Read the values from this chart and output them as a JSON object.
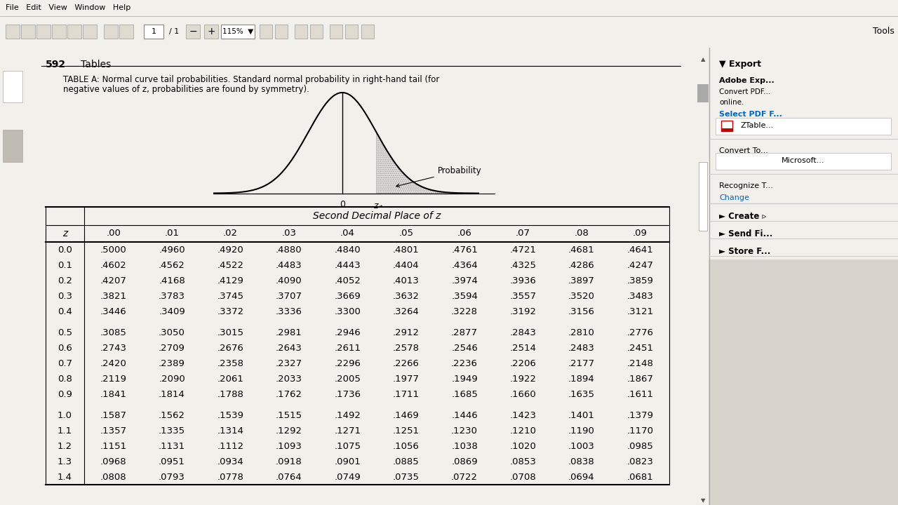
{
  "page_number": "592",
  "page_label": "Tables",
  "col_header_label": "Second Decimal Place of z",
  "z_label": "z",
  "col_headers": [
    ".00",
    ".01",
    ".02",
    ".03",
    ".04",
    ".05",
    ".06",
    ".07",
    ".08",
    ".09"
  ],
  "rows": [
    {
      "z": "0.0",
      "vals": [
        ".5000",
        ".4960",
        ".4920",
        ".4880",
        ".4840",
        ".4801",
        ".4761",
        ".4721",
        ".4681",
        ".4641"
      ]
    },
    {
      "z": "0.1",
      "vals": [
        ".4602",
        ".4562",
        ".4522",
        ".4483",
        ".4443",
        ".4404",
        ".4364",
        ".4325",
        ".4286",
        ".4247"
      ]
    },
    {
      "z": "0.2",
      "vals": [
        ".4207",
        ".4168",
        ".4129",
        ".4090",
        ".4052",
        ".4013",
        ".3974",
        ".3936",
        ".3897",
        ".3859"
      ]
    },
    {
      "z": "0.3",
      "vals": [
        ".3821",
        ".3783",
        ".3745",
        ".3707",
        ".3669",
        ".3632",
        ".3594",
        ".3557",
        ".3520",
        ".3483"
      ]
    },
    {
      "z": "0.4",
      "vals": [
        ".3446",
        ".3409",
        ".3372",
        ".3336",
        ".3300",
        ".3264",
        ".3228",
        ".3192",
        ".3156",
        ".3121"
      ]
    },
    {
      "z": "0.5",
      "vals": [
        ".3085",
        ".3050",
        ".3015",
        ".2981",
        ".2946",
        ".2912",
        ".2877",
        ".2843",
        ".2810",
        ".2776"
      ]
    },
    {
      "z": "0.6",
      "vals": [
        ".2743",
        ".2709",
        ".2676",
        ".2643",
        ".2611",
        ".2578",
        ".2546",
        ".2514",
        ".2483",
        ".2451"
      ]
    },
    {
      "z": "0.7",
      "vals": [
        ".2420",
        ".2389",
        ".2358",
        ".2327",
        ".2296",
        ".2266",
        ".2236",
        ".2206",
        ".2177",
        ".2148"
      ]
    },
    {
      "z": "0.8",
      "vals": [
        ".2119",
        ".2090",
        ".2061",
        ".2033",
        ".2005",
        ".1977",
        ".1949",
        ".1922",
        ".1894",
        ".1867"
      ]
    },
    {
      "z": "0.9",
      "vals": [
        ".1841",
        ".1814",
        ".1788",
        ".1762",
        ".1736",
        ".1711",
        ".1685",
        ".1660",
        ".1635",
        ".1611"
      ]
    },
    {
      "z": "1.0",
      "vals": [
        ".1587",
        ".1562",
        ".1539",
        ".1515",
        ".1492",
        ".1469",
        ".1446",
        ".1423",
        ".1401",
        ".1379"
      ]
    },
    {
      "z": "1.1",
      "vals": [
        ".1357",
        ".1335",
        ".1314",
        ".1292",
        ".1271",
        ".1251",
        ".1230",
        ".1210",
        ".1190",
        ".1170"
      ]
    },
    {
      "z": "1.2",
      "vals": [
        ".1151",
        ".1131",
        ".1112",
        ".1093",
        ".1075",
        ".1056",
        ".1038",
        ".1020",
        ".1003",
        ".0985"
      ]
    },
    {
      "z": "1.3",
      "vals": [
        ".0968",
        ".0951",
        ".0934",
        ".0918",
        ".0901",
        ".0885",
        ".0869",
        ".0853",
        ".0838",
        ".0823"
      ]
    },
    {
      "z": "1.4",
      "vals": [
        ".0808",
        ".0793",
        ".0778",
        ".0764",
        ".0749",
        ".0735",
        ".0722",
        ".0708",
        ".0694",
        ".0681"
      ]
    }
  ],
  "group_breaks": [
    4,
    9
  ],
  "bg_color": "#f2f0eb",
  "page_bg": "#ffffff",
  "toolbar_bg": "#e8e4dc",
  "menubar_bg": "#ddd8d0",
  "right_panel_bg": "#f2f0eb",
  "right_panel_border": "#cccccc",
  "scrollbar_bg": "#d8d4cc",
  "left_sidebar_bg": "#b8b4ac",
  "caption_line1": "TABLE A: Normal curve tail probabilities. Standard normal probability in right-hand tail (for",
  "caption_line2": "negative values of z, probabilities are found by symmetry).",
  "export_title": "▼ Export",
  "adobe_line1": "Adobe Exp...",
  "adobe_line2": "Convert PDF...",
  "adobe_line3": "online.",
  "select_pdf": "Select PDF F...",
  "ztable": "ZTable...",
  "convert_to": "Convert To...",
  "microsoft": "Microsoft...",
  "recognize": "Recognize T...",
  "change": "Change",
  "create": "► Create ▹",
  "send_fi": "► Send Fi...",
  "store_f": "► Store F...",
  "tools_label": "Tools"
}
